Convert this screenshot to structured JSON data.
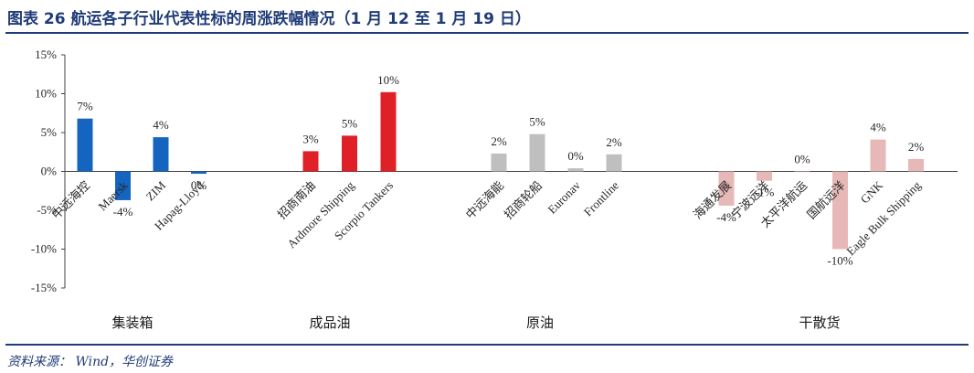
{
  "header": {
    "title": "图表 26  航运各子行业代表性标的周涨跌幅情况（1 月 12 至 1 月 19 日）"
  },
  "footer": {
    "source": "资料来源： Wind，华创证券"
  },
  "chart_data": {
    "type": "bar",
    "ylim": [
      -15,
      15
    ],
    "yticks": [
      -15,
      -10,
      -5,
      0,
      5,
      10,
      15
    ],
    "ytick_labels": [
      "-15%",
      "-10%",
      "-5%",
      "0%",
      "5%",
      "10%",
      "15%"
    ],
    "grid": false,
    "groups": [
      {
        "name": "集装箱",
        "color": "#1565c0",
        "items": [
          {
            "label": "中远海控",
            "value": 6.8,
            "value_label": "7%"
          },
          {
            "label": "Maersk",
            "value": -3.7,
            "value_label": "-4%"
          },
          {
            "label": "ZIM",
            "value": 4.4,
            "value_label": "4%"
          },
          {
            "label": "Hapag-Lloyd",
            "value": -0.3,
            "value_label": "0%"
          }
        ]
      },
      {
        "name": "成品油",
        "color": "#e02027",
        "items": [
          {
            "label": "招商南油",
            "value": 2.6,
            "value_label": "3%"
          },
          {
            "label": "Ardmore Shipping",
            "value": 4.6,
            "value_label": "5%"
          },
          {
            "label": "Scorpio Tankers",
            "value": 10.2,
            "value_label": "10%"
          }
        ]
      },
      {
        "name": "原油",
        "color": "#bfbfbf",
        "items": [
          {
            "label": "中远海能",
            "value": 2.3,
            "value_label": "2%"
          },
          {
            "label": "招商轮船",
            "value": 4.8,
            "value_label": "5%"
          },
          {
            "label": "Euronav",
            "value": 0.4,
            "value_label": "0%"
          },
          {
            "label": "Frontline",
            "value": 2.2,
            "value_label": "2%"
          }
        ]
      },
      {
        "name": "干散货",
        "color": "#e6b8b7",
        "items": [
          {
            "label": "海通发展",
            "value": -4.4,
            "value_label": "-4%"
          },
          {
            "label": "宁波远洋",
            "value": -1.2,
            "value_label": "-1%"
          },
          {
            "label": "太平洋航运",
            "value": 0.0,
            "value_label": "0%"
          },
          {
            "label": "国航远洋",
            "value": -10.0,
            "value_label": "-10%"
          },
          {
            "label": "GNK",
            "value": 4.1,
            "value_label": "4%"
          },
          {
            "label": "Eagle Bulk Shipping",
            "value": 1.6,
            "value_label": "2%"
          }
        ]
      }
    ]
  }
}
